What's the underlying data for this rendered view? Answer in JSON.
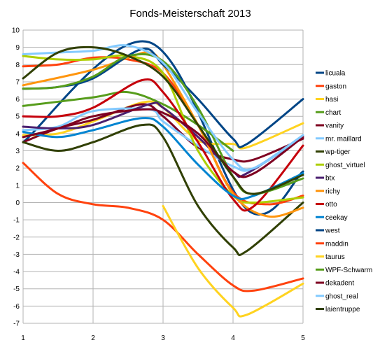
{
  "chart_data": {
    "type": "line",
    "title": "Fonds-Meisterschaft 2013",
    "xlabel": "",
    "ylabel": "",
    "x": [
      1,
      2,
      3,
      4,
      5
    ],
    "xlim": [
      1,
      5
    ],
    "ylim": [
      -7,
      10
    ],
    "x_ticks": [
      "1",
      "2",
      "3",
      "4",
      "5"
    ],
    "y_ticks": [
      "10",
      "9",
      "8",
      "7",
      "6",
      "5",
      "4",
      "3",
      "2",
      "1",
      "0",
      "-1",
      "-2",
      "-3",
      "-4",
      "-5",
      "-6",
      "-7"
    ],
    "grid": true,
    "smooth": true,
    "legend_position": "right",
    "series": [
      {
        "name": "licuala",
        "color": "#004586",
        "points": [
          [
            1,
            3.5
          ],
          [
            2.8,
            9.3
          ],
          [
            4.2,
            -0.4
          ],
          [
            5,
            1.8
          ]
        ]
      },
      {
        "name": "gaston",
        "color": "#ff420e",
        "points": [
          [
            1,
            7.9
          ],
          [
            1.5,
            8.0
          ],
          [
            2,
            8.4
          ],
          [
            2.5,
            8.3
          ],
          [
            3,
            7.5
          ],
          [
            3.5,
            4.5
          ],
          [
            4,
            0.6
          ],
          [
            4.5,
            -0.1
          ],
          [
            5,
            0.4
          ]
        ]
      },
      {
        "name": "hasi",
        "color": "#ffd320",
        "points": [
          [
            1,
            3.9
          ],
          [
            1.5,
            4.0
          ],
          [
            2,
            4.7
          ],
          [
            2.7,
            5.8
          ],
          [
            3,
            5.5
          ],
          [
            3.5,
            3.6
          ],
          [
            4,
            3.4
          ],
          [
            4.2,
            3.2
          ],
          [
            5,
            4.6
          ]
        ]
      },
      {
        "name": "chart",
        "color": "#579d1c",
        "points": [
          [
            1,
            5.6
          ],
          [
            2,
            6.1
          ],
          [
            2.5,
            6.4
          ],
          [
            3,
            5.7
          ],
          [
            3.5,
            4.5
          ],
          [
            4,
            3.0
          ]
        ]
      },
      {
        "name": "vanity",
        "color": "#7e0021",
        "points": [
          [
            1,
            3.5
          ],
          [
            1.5,
            4.3
          ],
          [
            2,
            4.8
          ],
          [
            2.7,
            5.7
          ],
          [
            3,
            5.0
          ],
          [
            3.5,
            3.2
          ],
          [
            4,
            2.5
          ],
          [
            4.3,
            2.5
          ],
          [
            5,
            3.7
          ]
        ]
      },
      {
        "name": "mr. maillard",
        "color": "#83caff",
        "points": [
          [
            1,
            4.2
          ],
          [
            1.5,
            4.4
          ],
          [
            2,
            5.3
          ],
          [
            2.8,
            5.4
          ],
          [
            3,
            4.7
          ],
          [
            3.5,
            3.3
          ],
          [
            4,
            2.1
          ],
          [
            4.3,
            2.0
          ],
          [
            5,
            3.9
          ]
        ]
      },
      {
        "name": "wp-tiger",
        "color": "#314004",
        "points": [
          [
            1,
            3.5
          ],
          [
            1.5,
            3.0
          ],
          [
            2,
            3.5
          ],
          [
            2.7,
            4.5
          ],
          [
            3,
            3.8
          ],
          [
            3.5,
            -0.2
          ],
          [
            4,
            -2.6
          ],
          [
            4.2,
            -2.8
          ],
          [
            5,
            0
          ]
        ]
      },
      {
        "name": "ghost_virtuel",
        "color": "#aecf00",
        "points": [
          [
            1,
            8.5
          ],
          [
            1.5,
            8.3
          ],
          [
            2,
            8.3
          ],
          [
            2.5,
            8.5
          ],
          [
            3,
            7.5
          ],
          [
            3.5,
            3.0
          ],
          [
            4,
            0.4
          ],
          [
            4.3,
            0
          ],
          [
            5,
            0.3
          ]
        ]
      },
      {
        "name": "btx",
        "color": "#4b1f6f",
        "points": [
          [
            1,
            4.4
          ],
          [
            1.5,
            4.3
          ],
          [
            2,
            4.5
          ],
          [
            2.8,
            5.7
          ],
          [
            3,
            5.5
          ],
          [
            3.5,
            3.8
          ],
          [
            4,
            1.8
          ],
          [
            4.2,
            1.7
          ],
          [
            5,
            3.8
          ]
        ]
      },
      {
        "name": "richy",
        "color": "#ff950e",
        "points": [
          [
            1,
            6.8
          ],
          [
            2,
            7.7
          ],
          [
            2.5,
            8.4
          ],
          [
            2.8,
            8.7
          ],
          [
            3,
            8.0
          ],
          [
            3.5,
            4.5
          ],
          [
            4,
            0.5
          ],
          [
            4.5,
            -0.8
          ],
          [
            5,
            -0.3
          ]
        ]
      },
      {
        "name": "otto",
        "color": "#c5000b",
        "points": [
          [
            1,
            5.0
          ],
          [
            1.5,
            5.0
          ],
          [
            2,
            5.5
          ],
          [
            2.7,
            7.1
          ],
          [
            3,
            6.4
          ],
          [
            3.5,
            3.5
          ],
          [
            4,
            0.2
          ],
          [
            4.3,
            -0.2
          ],
          [
            5,
            3.3
          ]
        ]
      },
      {
        "name": "ceekay",
        "color": "#0084d1",
        "points": [
          [
            1,
            4.1
          ],
          [
            1.5,
            3.8
          ],
          [
            2,
            4.2
          ],
          [
            2.7,
            4.9
          ],
          [
            3,
            4.4
          ],
          [
            3.5,
            2.2
          ],
          [
            4,
            0.4
          ],
          [
            4.3,
            0.4
          ],
          [
            5,
            1.7
          ]
        ]
      },
      {
        "name": "west",
        "color": "#004586",
        "points": [
          [
            1,
            6.6
          ],
          [
            1.5,
            6.7
          ],
          [
            2,
            7.2
          ],
          [
            2.7,
            8.9
          ],
          [
            3,
            8.0
          ],
          [
            3.5,
            6.0
          ],
          [
            4,
            3.7
          ],
          [
            4.2,
            3.4
          ],
          [
            5,
            6.0
          ]
        ]
      },
      {
        "name": "maddin",
        "color": "#ff420e",
        "points": [
          [
            1,
            2.3
          ],
          [
            1.5,
            0.5
          ],
          [
            2,
            -0.1
          ],
          [
            2.5,
            -0.3
          ],
          [
            3,
            -1.0
          ],
          [
            3.5,
            -3.0
          ],
          [
            4,
            -4.8
          ],
          [
            4.3,
            -5.1
          ],
          [
            5,
            -4.4
          ]
        ]
      },
      {
        "name": "taurus",
        "color": "#ffd320",
        "points": [
          [
            3,
            -0.2
          ],
          [
            3.5,
            -3.8
          ],
          [
            4,
            -6.1
          ],
          [
            4.2,
            -6.5
          ],
          [
            5,
            -4.7
          ]
        ]
      },
      {
        "name": "WPF-Schwarm",
        "color": "#579d1c",
        "points": [
          [
            1,
            6.6
          ],
          [
            1.5,
            6.7
          ],
          [
            2,
            7.3
          ],
          [
            2.5,
            8.5
          ],
          [
            3,
            8.2
          ],
          [
            3.5,
            5.5
          ],
          [
            4,
            1.5
          ],
          [
            4.3,
            0.5
          ],
          [
            5,
            1.4
          ]
        ]
      },
      {
        "name": "dekadent",
        "color": "#7e0021",
        "points": [
          [
            1,
            3.8
          ],
          [
            1.5,
            4.3
          ],
          [
            2,
            5.0
          ],
          [
            2.7,
            5.4
          ],
          [
            3,
            5.2
          ],
          [
            3.5,
            4.0
          ],
          [
            4,
            1.8
          ],
          [
            4.3,
            1.7
          ],
          [
            5,
            3.8
          ]
        ]
      },
      {
        "name": "ghost_real",
        "color": "#83caff",
        "points": [
          [
            1,
            8.6
          ],
          [
            1.5,
            8.7
          ],
          [
            2,
            8.8
          ],
          [
            2.5,
            9.1
          ],
          [
            3,
            8.1
          ],
          [
            3.5,
            5.2
          ],
          [
            4,
            2.5
          ],
          [
            4.3,
            2.0
          ],
          [
            5,
            3.9
          ]
        ]
      },
      {
        "name": "laientruppe",
        "color": "#314004",
        "points": [
          [
            1,
            7.2
          ],
          [
            1.5,
            8.7
          ],
          [
            2,
            9.0
          ],
          [
            2.5,
            8.5
          ],
          [
            3,
            7.3
          ],
          [
            3.5,
            4.5
          ],
          [
            4,
            1.5
          ],
          [
            4.3,
            0.5
          ],
          [
            5,
            1.6
          ]
        ]
      }
    ]
  }
}
